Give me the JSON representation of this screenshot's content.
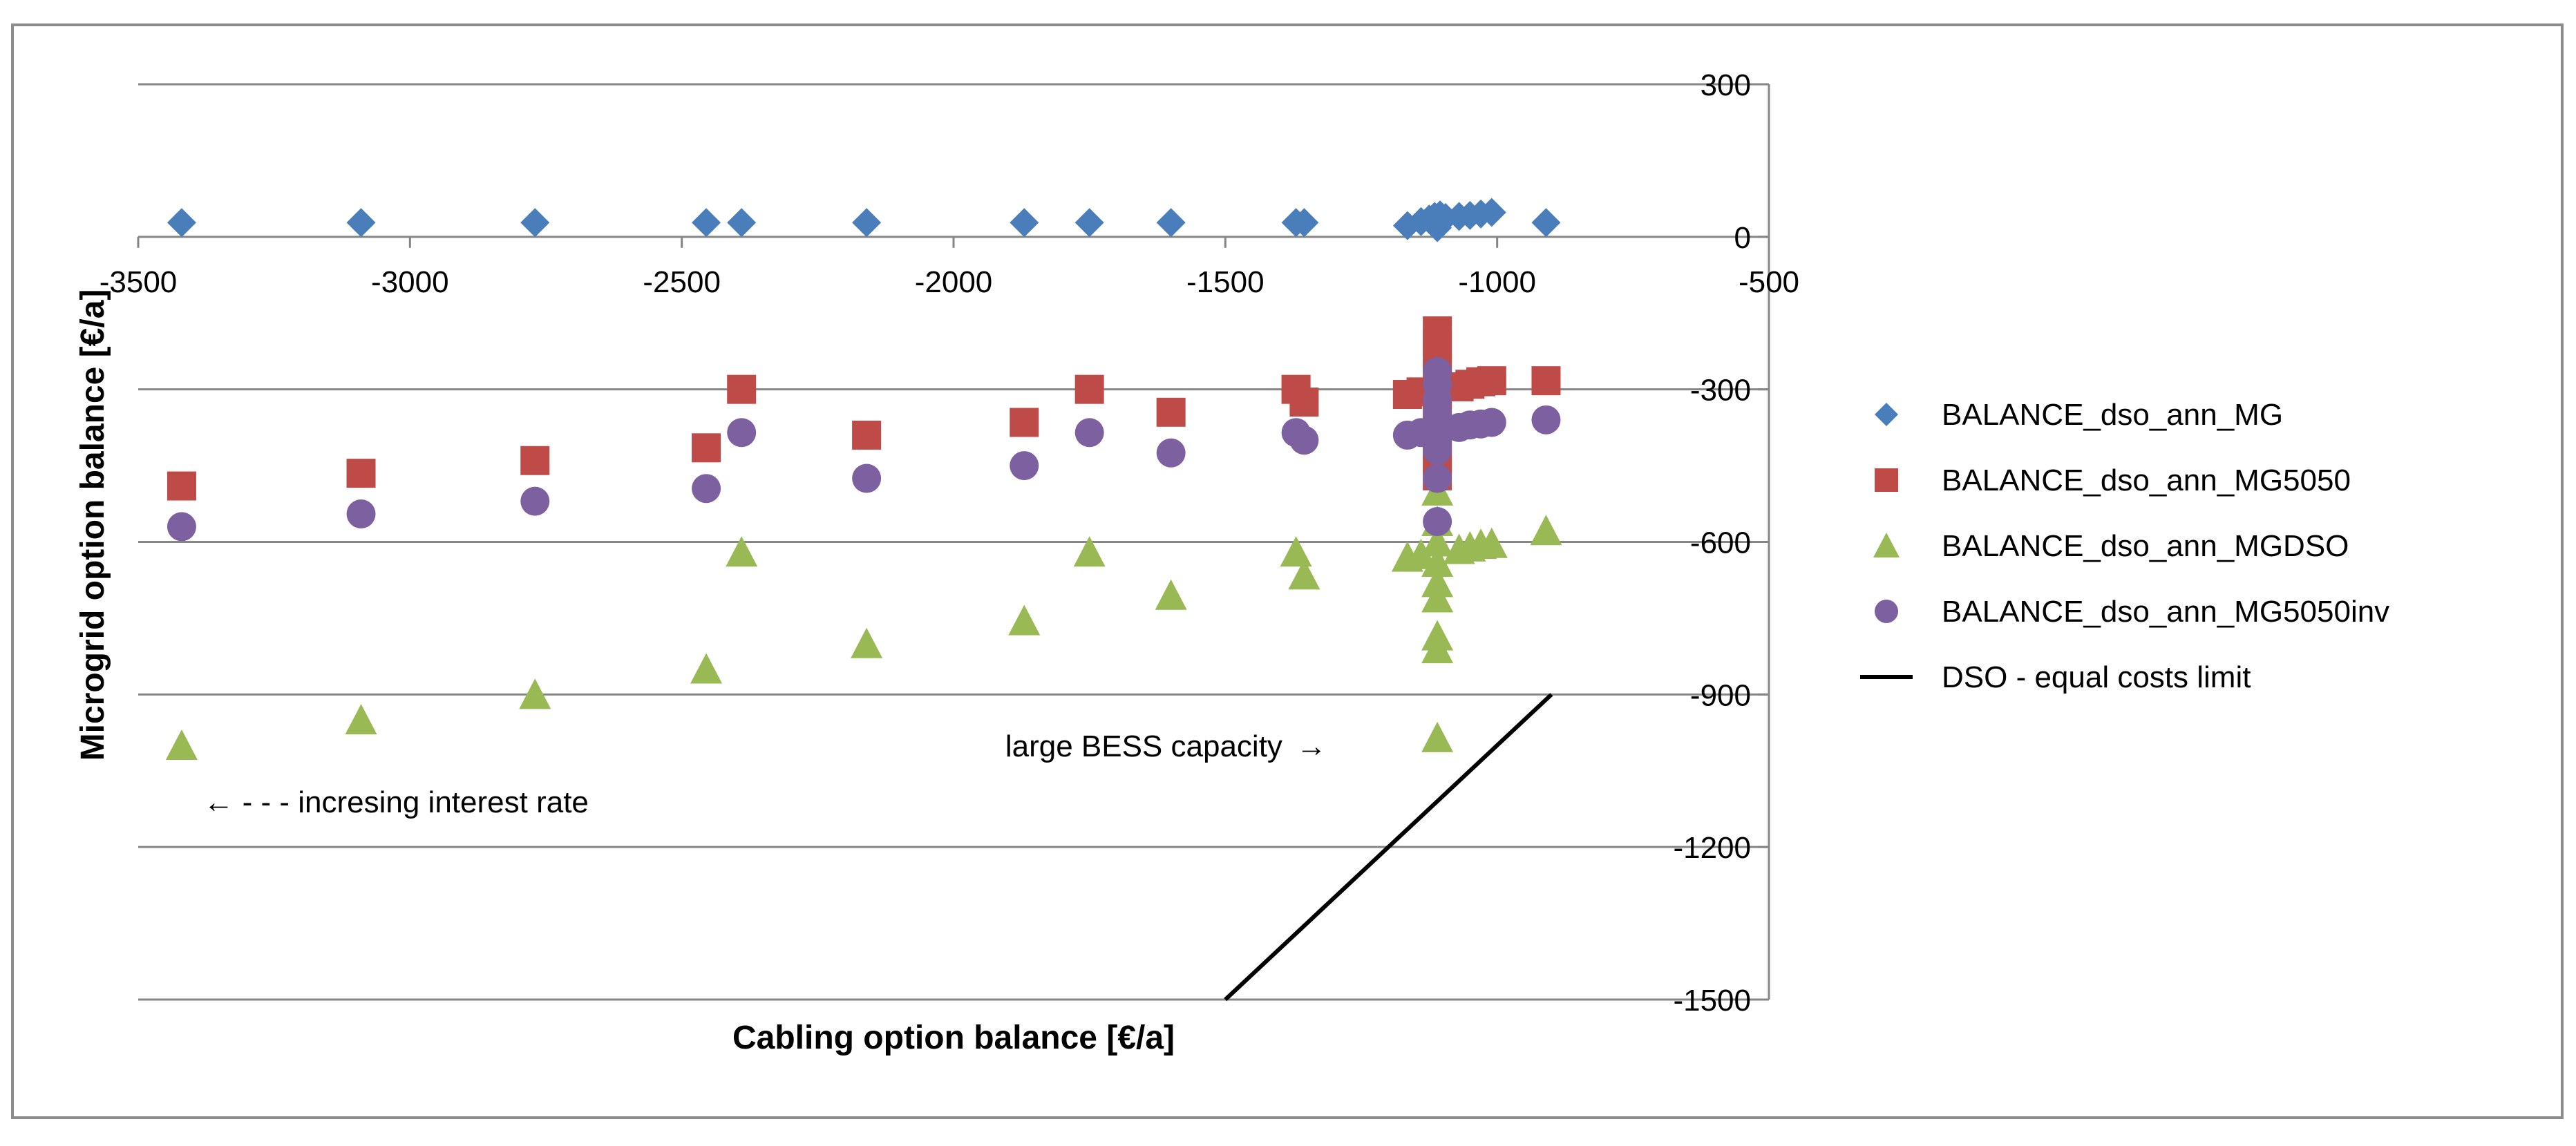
{
  "chart_data": {
    "type": "scatter",
    "title": "",
    "xlabel": "Cabling option balance [€/a]",
    "ylabel": "Microgrid option balance [€/a]",
    "xlim": [
      -3500,
      -500
    ],
    "ylim": [
      -1500,
      300
    ],
    "x_ticks": [
      -3500,
      -3000,
      -2500,
      -2000,
      -1500,
      -1000,
      -500
    ],
    "y_ticks": [
      300,
      0,
      -300,
      -600,
      -900,
      -1200,
      -1500
    ],
    "x_tick_labels": [
      "-3500",
      "-3000",
      "-2500",
      "-2000",
      "-1500",
      "-1000",
      "-500"
    ],
    "y_tick_labels": [
      "300",
      "0",
      "-300",
      "-600",
      "-900",
      "-1200",
      "-1500"
    ],
    "gridlines": "horizontal",
    "legend_position": "right",
    "series": [
      {
        "name": "BALANCE_dso_ann_MG",
        "marker": "diamond",
        "color": "#4a7ebb",
        "points": [
          [
            -3420,
            28
          ],
          [
            -3090,
            28
          ],
          [
            -2770,
            28
          ],
          [
            -2455,
            28
          ],
          [
            -2390,
            28
          ],
          [
            -2160,
            28
          ],
          [
            -1870,
            28
          ],
          [
            -1750,
            28
          ],
          [
            -1600,
            28
          ],
          [
            -1370,
            28
          ],
          [
            -1355,
            28
          ],
          [
            -1165,
            22
          ],
          [
            -1140,
            30
          ],
          [
            -1125,
            35
          ],
          [
            -1115,
            40
          ],
          [
            -1110,
            18
          ],
          [
            -1105,
            43
          ],
          [
            -1095,
            38
          ],
          [
            -1070,
            40
          ],
          [
            -1050,
            42
          ],
          [
            -1030,
            45
          ],
          [
            -1010,
            48
          ],
          [
            -910,
            28
          ]
        ]
      },
      {
        "name": "BALANCE_dso_ann_MG5050",
        "marker": "square",
        "color": "#be4b48",
        "points": [
          [
            -3420,
            -490
          ],
          [
            -3090,
            -465
          ],
          [
            -2770,
            -440
          ],
          [
            -2455,
            -415
          ],
          [
            -2390,
            -300
          ],
          [
            -2160,
            -390
          ],
          [
            -1870,
            -365
          ],
          [
            -1750,
            -300
          ],
          [
            -1600,
            -345
          ],
          [
            -1370,
            -300
          ],
          [
            -1355,
            -325
          ],
          [
            -1165,
            -310
          ],
          [
            -1140,
            -305
          ],
          [
            -1110,
            -185
          ],
          [
            -1110,
            -210
          ],
          [
            -1110,
            -240
          ],
          [
            -1110,
            -270
          ],
          [
            -1110,
            -310
          ],
          [
            -1110,
            -350
          ],
          [
            -1110,
            -380
          ],
          [
            -1110,
            -410
          ],
          [
            -1110,
            -440
          ],
          [
            -1110,
            -470
          ],
          [
            -1070,
            -295
          ],
          [
            -1050,
            -290
          ],
          [
            -1030,
            -285
          ],
          [
            -1010,
            -283
          ],
          [
            -910,
            -283
          ]
        ]
      },
      {
        "name": "BALANCE_dso_ann_MGDSO",
        "marker": "triangle",
        "color": "#98b954",
        "points": [
          [
            -3420,
            -1000
          ],
          [
            -3090,
            -950
          ],
          [
            -2770,
            -900
          ],
          [
            -2455,
            -850
          ],
          [
            -2390,
            -620
          ],
          [
            -2160,
            -800
          ],
          [
            -1870,
            -755
          ],
          [
            -1750,
            -620
          ],
          [
            -1600,
            -705
          ],
          [
            -1370,
            -620
          ],
          [
            -1355,
            -665
          ],
          [
            -1165,
            -630
          ],
          [
            -1140,
            -625
          ],
          [
            -1110,
            -500
          ],
          [
            -1110,
            -560
          ],
          [
            -1110,
            -600
          ],
          [
            -1110,
            -640
          ],
          [
            -1110,
            -680
          ],
          [
            -1110,
            -710
          ],
          [
            -1110,
            -785
          ],
          [
            -1110,
            -810
          ],
          [
            -1110,
            -985
          ],
          [
            -1070,
            -615
          ],
          [
            -1050,
            -610
          ],
          [
            -1030,
            -605
          ],
          [
            -1010,
            -603
          ],
          [
            -910,
            -578
          ]
        ]
      },
      {
        "name": "BALANCE_dso_ann_MG5050inv",
        "marker": "circle",
        "color": "#7d60a0",
        "points": [
          [
            -3420,
            -570
          ],
          [
            -3090,
            -545
          ],
          [
            -2770,
            -520
          ],
          [
            -2455,
            -495
          ],
          [
            -2390,
            -385
          ],
          [
            -2160,
            -475
          ],
          [
            -1870,
            -450
          ],
          [
            -1750,
            -385
          ],
          [
            -1600,
            -425
          ],
          [
            -1370,
            -385
          ],
          [
            -1355,
            -400
          ],
          [
            -1165,
            -390
          ],
          [
            -1140,
            -385
          ],
          [
            -1110,
            -265
          ],
          [
            -1110,
            -290
          ],
          [
            -1110,
            -320
          ],
          [
            -1110,
            -345
          ],
          [
            -1110,
            -375
          ],
          [
            -1110,
            -400
          ],
          [
            -1110,
            -420
          ],
          [
            -1110,
            -475
          ],
          [
            -1110,
            -560
          ],
          [
            -1070,
            -375
          ],
          [
            -1050,
            -370
          ],
          [
            -1030,
            -368
          ],
          [
            -1010,
            -365
          ],
          [
            -910,
            -360
          ]
        ]
      },
      {
        "name": "DSO - equal costs limit",
        "marker": "line",
        "color": "#000000",
        "points": [
          [
            -1500,
            -1500
          ],
          [
            -900,
            -900
          ]
        ]
      }
    ],
    "annotations": [
      {
        "text": "large BESS capacity",
        "arrow": "→",
        "anchor": [
          -1395,
          -1000
        ]
      },
      {
        "text": "increasing interest rate",
        "label": "← - - - incresing interest rate",
        "anchor": [
          -3380,
          -1110
        ]
      }
    ]
  }
}
